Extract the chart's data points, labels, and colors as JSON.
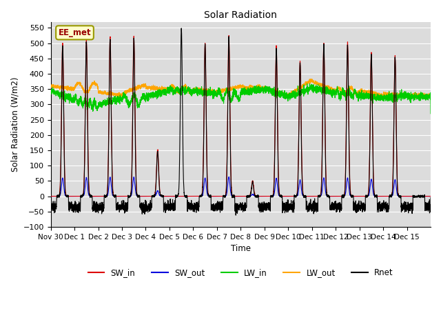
{
  "title": "Solar Radiation",
  "ylabel": "Solar Radiation (W/m2)",
  "xlabel": "Time",
  "ylim": [
    -100,
    570
  ],
  "yticks": [
    -100,
    -50,
    0,
    50,
    100,
    150,
    200,
    250,
    300,
    350,
    400,
    450,
    500,
    550
  ],
  "annotation_text": "EE_met",
  "colors": {
    "SW_in": "#dd0000",
    "SW_out": "#0000dd",
    "LW_in": "#00cc00",
    "LW_out": "#ffa500",
    "Rnet": "#000000"
  },
  "n_days": 16,
  "background_color": "#dcdcdc",
  "grid_color": "#ffffff",
  "fig_bg": "#ffffff",
  "tick_labels": [
    "Nov 30",
    "Dec 1",
    "Dec 2",
    "Dec 3",
    "Dec 4",
    "Dec 5",
    "Dec 6",
    "Dec 7",
    "Dec 8",
    "Dec 9",
    "Dec 10",
    "Dec 11",
    "Dec 12",
    "Dec 13",
    "Dec 14",
    "Dec 15"
  ]
}
